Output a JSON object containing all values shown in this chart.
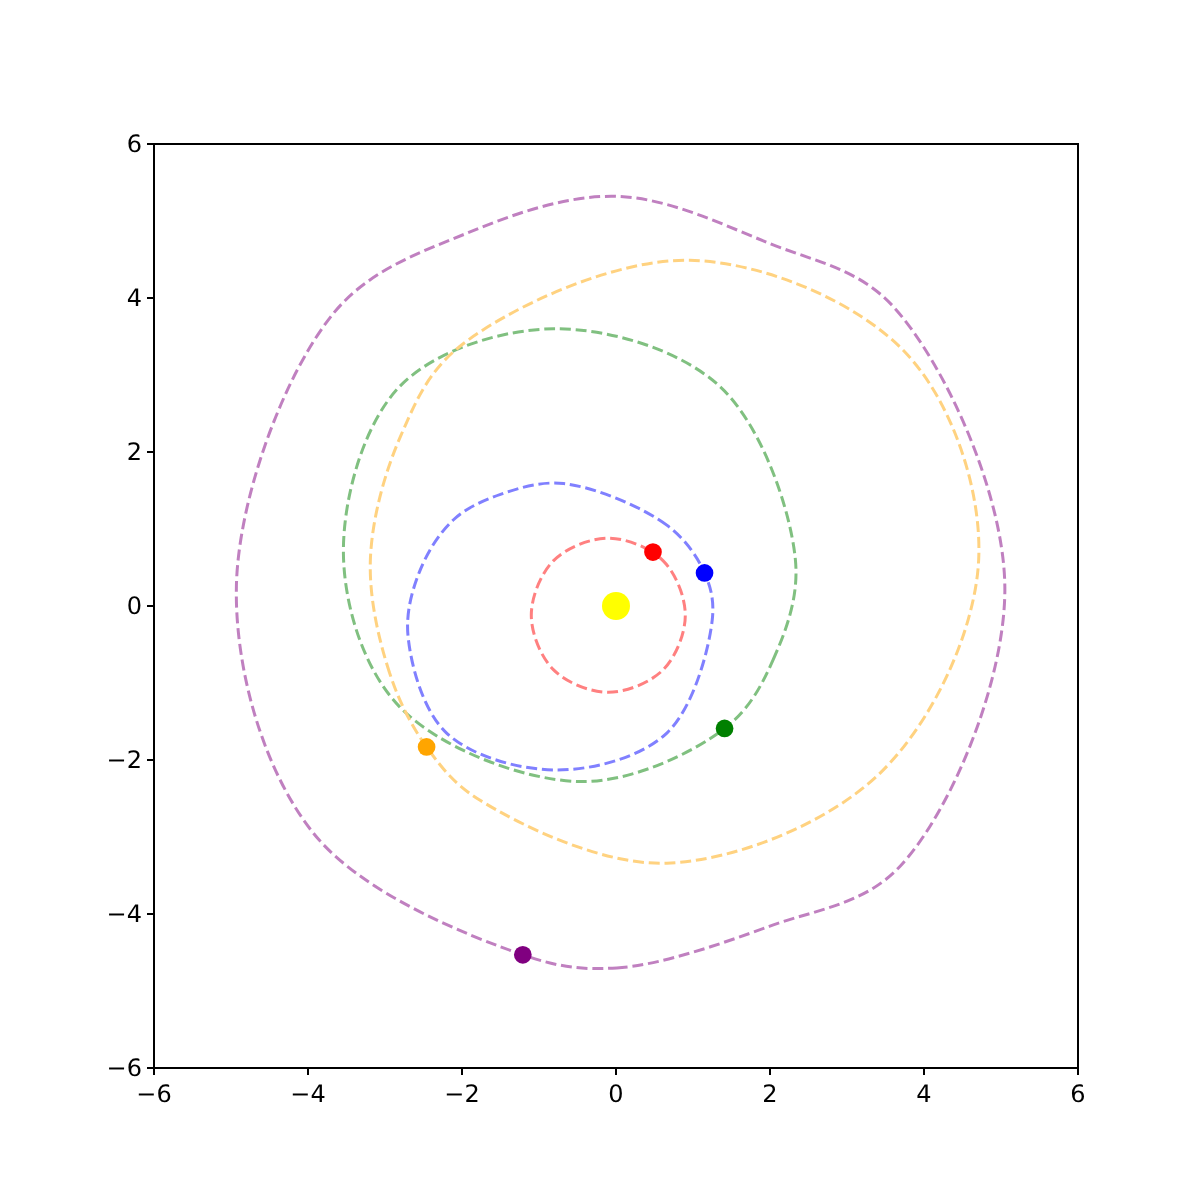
{
  "chart_data": {
    "type": "bubble",
    "xlim": [
      -6,
      6
    ],
    "ylim": [
      -6,
      6
    ],
    "xticks": [
      -6,
      -4,
      -2,
      0,
      2,
      4,
      6
    ],
    "yticks": [
      -6,
      -4,
      -2,
      0,
      2,
      4,
      6
    ],
    "grid": false,
    "marker": "circle",
    "series": [
      {
        "colors": [
          "#ffff00",
          "#ff0000",
          "#0000ff",
          "#008000",
          "#ffa500",
          "#800080"
        ],
        "x": [
          0,
          0.48,
          1.15,
          1.41,
          -2.46,
          -1.21
        ],
        "values": [
          0,
          0.7,
          0.43,
          -1.59,
          -1.83,
          -4.53
        ],
        "sizes": [
          1,
          0.4,
          0.4,
          0.4,
          0.4,
          0.4
        ]
      }
    ]
  }
}
